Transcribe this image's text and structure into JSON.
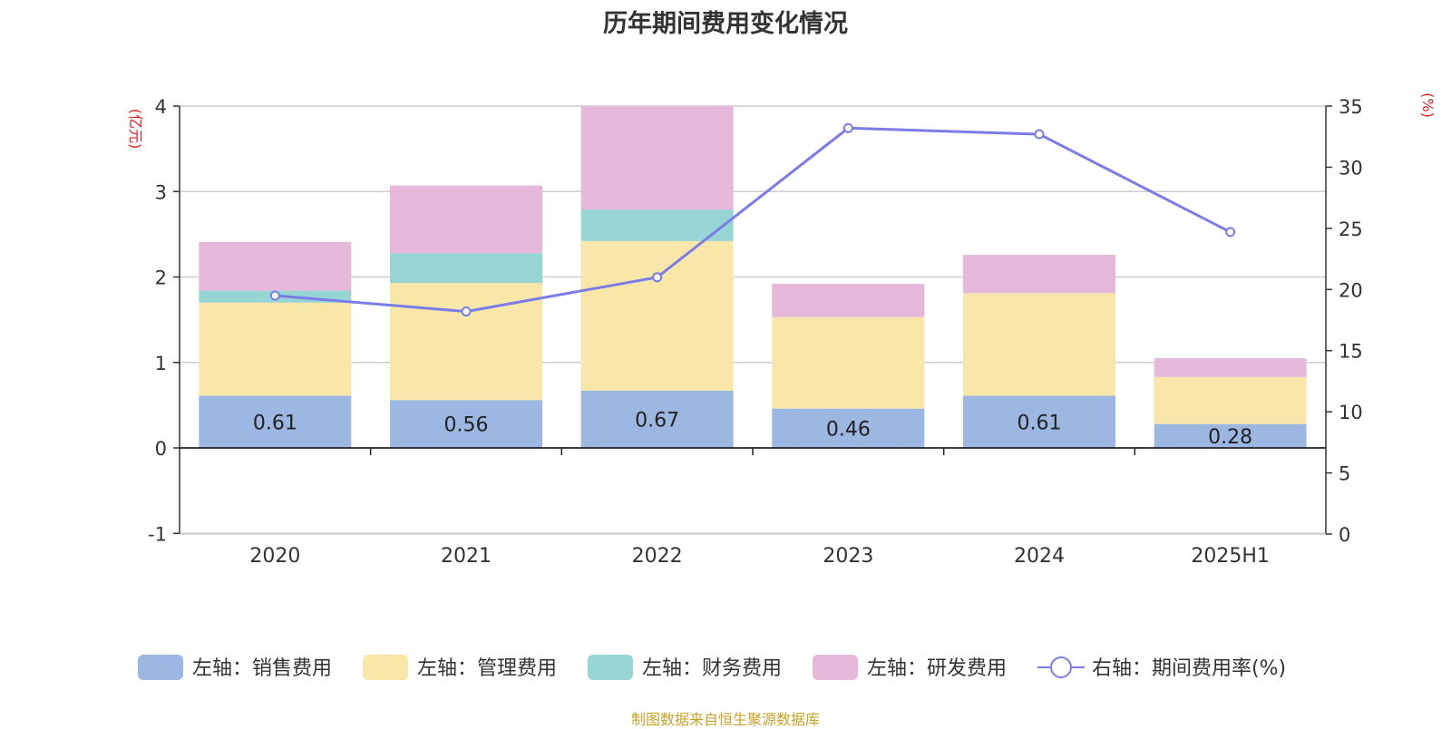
{
  "title": "历年期间费用变化情况",
  "source_note": "制图数据来自恒生聚源数据库",
  "colors": {
    "sales": "#9bb7e2",
    "admin": "#f8e7a8",
    "finance": "#97d4d4",
    "rd": "#e6b9da",
    "rate": "#7a7de8",
    "axis_unit": "#e02020",
    "source": "#c9a227"
  },
  "chart_data": {
    "type": "bar",
    "stacked": true,
    "title": "历年期间费用变化情况",
    "categories": [
      "2020",
      "2021",
      "2022",
      "2023",
      "2024",
      "2025H1"
    ],
    "left_axis": {
      "unit_label": "(亿元)",
      "range": [
        -1,
        4
      ],
      "ticks": [
        -1,
        0,
        1,
        2,
        3,
        4
      ]
    },
    "right_axis": {
      "unit_label": "(%)",
      "range": [
        0,
        35
      ],
      "ticks": [
        0,
        5,
        10,
        15,
        20,
        25,
        30,
        35
      ]
    },
    "grid": true,
    "legend_position": "bottom",
    "series": [
      {
        "key": "sales",
        "name": "左轴：销售费用",
        "axis": "left",
        "type": "bar",
        "values": [
          0.61,
          0.56,
          0.67,
          0.46,
          0.61,
          0.28
        ],
        "labels": [
          "0.61",
          "0.56",
          "0.67",
          "0.46",
          "0.61",
          "0.28"
        ]
      },
      {
        "key": "admin",
        "name": "左轴：管理费用",
        "axis": "left",
        "type": "bar",
        "values": [
          1.09,
          1.37,
          1.75,
          1.07,
          1.2,
          0.55
        ]
      },
      {
        "key": "finance",
        "name": "左轴：财务费用",
        "axis": "left",
        "type": "bar",
        "values": [
          0.14,
          0.35,
          0.37,
          0.0,
          0.0,
          0.0
        ]
      },
      {
        "key": "rd",
        "name": "左轴：研发费用",
        "axis": "left",
        "type": "bar",
        "values": [
          0.57,
          0.79,
          1.21,
          0.39,
          0.45,
          0.22
        ]
      },
      {
        "key": "rate",
        "name": "右轴：期间费用率(%)",
        "axis": "right",
        "type": "line",
        "values": [
          19.5,
          18.2,
          21.0,
          33.2,
          32.7,
          24.7
        ]
      }
    ]
  }
}
